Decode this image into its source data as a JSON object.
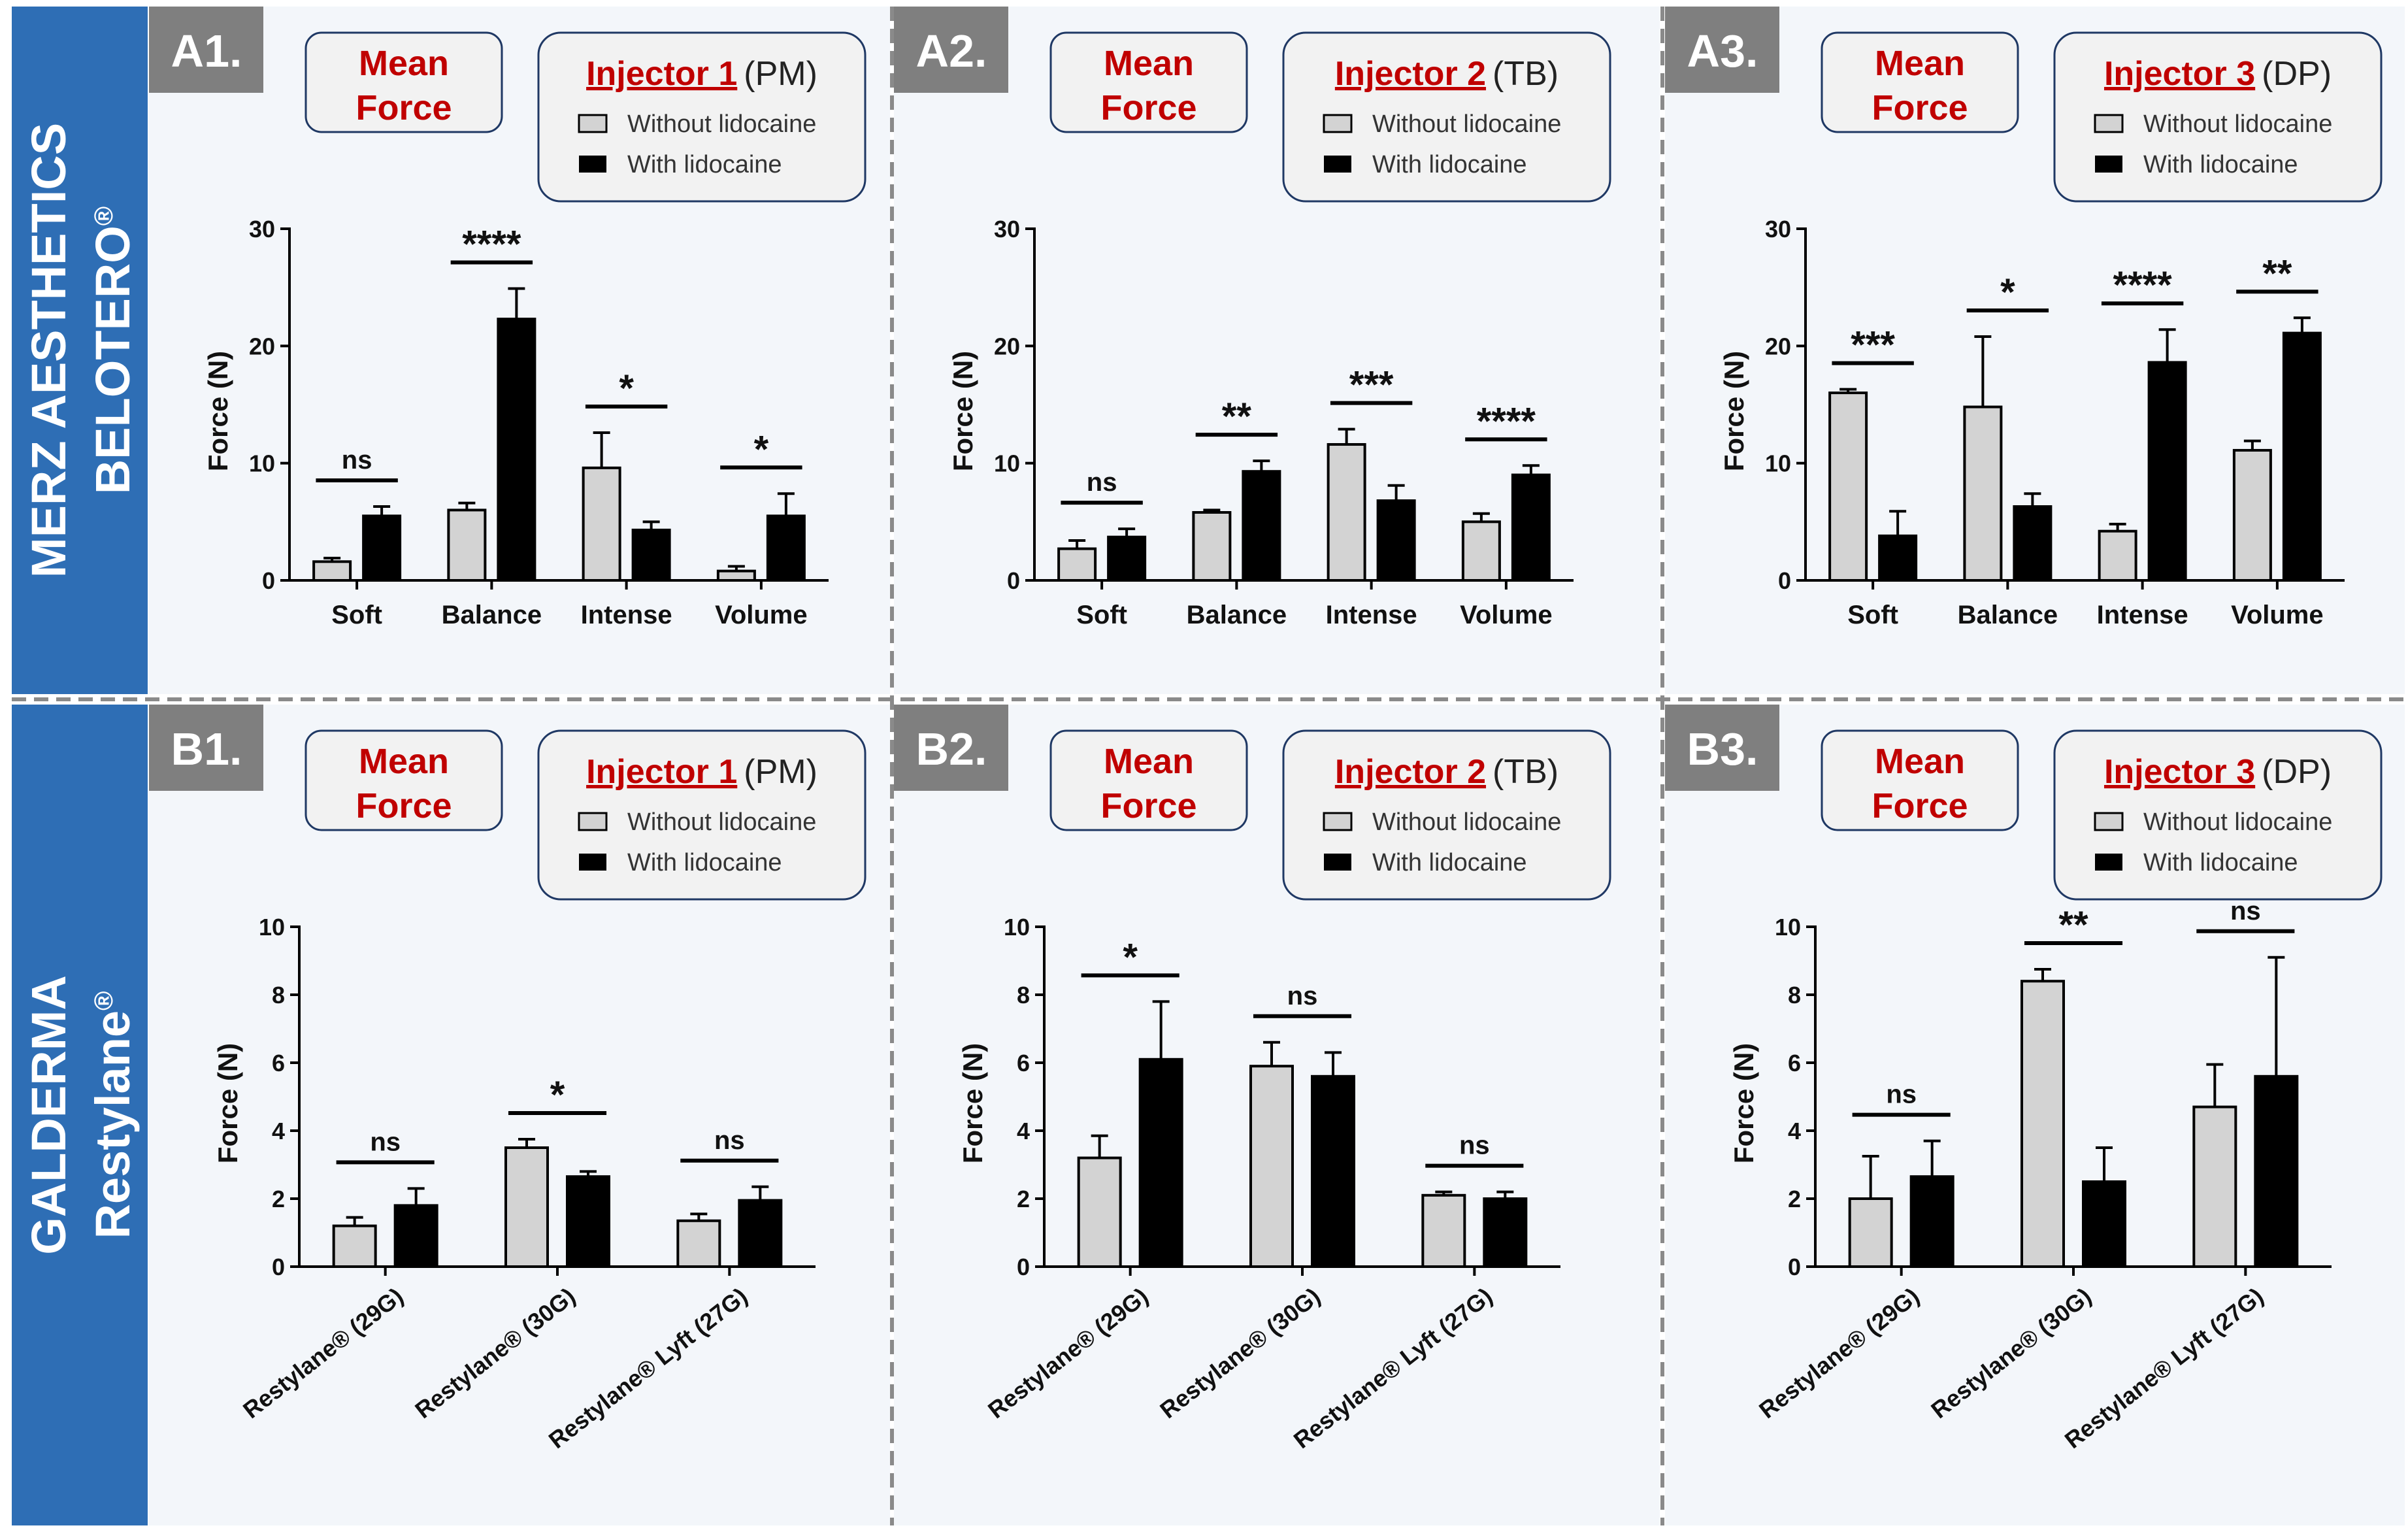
{
  "colors": {
    "sidebar": "#2e6eb5",
    "panel_bg": "#f3f6fa",
    "label_bg": "#7f7f7f",
    "title_red": "#c00000",
    "bar_light": "#d3d3d3",
    "bar_dark": "#000000",
    "box_fill": "#f2f2f2",
    "box_stroke": "#1f3864"
  },
  "sidebars": [
    {
      "line1": "MERZ AESTHETICS",
      "line2": "BELOTERO",
      "mark": "®"
    },
    {
      "line1": "GALDERMA",
      "line2": "Restylane",
      "mark": "®"
    }
  ],
  "legend": {
    "without": "Without lidocaine",
    "with": "With lidocaine"
  },
  "mean_force": {
    "line1": "Mean",
    "line2": "Force"
  },
  "chart_data": [
    {
      "panel": "A1.",
      "injector": "Injector 1",
      "injector_code": "(PM)",
      "type": "bar",
      "ylabel": "Force (N)",
      "ylim": [
        0,
        30
      ],
      "yticks": [
        0,
        10,
        20,
        30
      ],
      "categories": [
        "Soft",
        "Balance",
        "Intense",
        "Volume"
      ],
      "series": [
        {
          "name": "Without lidocaine",
          "values": [
            1.6,
            6.0,
            9.6,
            0.8
          ],
          "errors": [
            0.3,
            0.6,
            3.0,
            0.4
          ]
        },
        {
          "name": "With lidocaine",
          "values": [
            5.5,
            22.3,
            4.3,
            5.5
          ],
          "errors": [
            0.8,
            2.6,
            0.7,
            1.9
          ]
        }
      ],
      "significance": [
        "ns",
        "****",
        "*",
        "*"
      ]
    },
    {
      "panel": "A2.",
      "injector": "Injector 2",
      "injector_code": "(TB)",
      "type": "bar",
      "ylabel": "Force (N)",
      "ylim": [
        0,
        30
      ],
      "yticks": [
        0,
        10,
        20,
        30
      ],
      "categories": [
        "Soft",
        "Balance",
        "Intense",
        "Volume"
      ],
      "series": [
        {
          "name": "Without lidocaine",
          "values": [
            2.7,
            5.8,
            11.6,
            5.0
          ],
          "errors": [
            0.7,
            0.2,
            1.3,
            0.7
          ]
        },
        {
          "name": "With lidocaine",
          "values": [
            3.7,
            9.3,
            6.8,
            9.0
          ],
          "errors": [
            0.7,
            0.9,
            1.3,
            0.8
          ]
        }
      ],
      "significance": [
        "ns",
        "**",
        "***",
        "****"
      ]
    },
    {
      "panel": "A3.",
      "injector": "Injector 3",
      "injector_code": "(DP)",
      "type": "bar",
      "ylabel": "Force (N)",
      "ylim": [
        0,
        30
      ],
      "yticks": [
        0,
        10,
        20,
        30
      ],
      "categories": [
        "Soft",
        "Balance",
        "Intense",
        "Volume"
      ],
      "series": [
        {
          "name": "Without lidocaine",
          "values": [
            16.0,
            14.8,
            4.2,
            11.1
          ],
          "errors": [
            0.3,
            6.0,
            0.6,
            0.8
          ]
        },
        {
          "name": "With lidocaine",
          "values": [
            3.8,
            6.3,
            18.6,
            21.1
          ],
          "errors": [
            2.1,
            1.1,
            2.8,
            1.3
          ]
        }
      ],
      "significance": [
        "***",
        "*",
        "****",
        "**"
      ]
    },
    {
      "panel": "B1.",
      "injector": "Injector 1",
      "injector_code": "(PM)",
      "type": "bar",
      "ylabel": "Force (N)",
      "ylim": [
        0,
        10
      ],
      "yticks": [
        0,
        2,
        4,
        6,
        8,
        10
      ],
      "categories": [
        "Restylane® (29G)",
        "Restylane® (30G)",
        "Restylane® Lyft (27G)"
      ],
      "series": [
        {
          "name": "Without lidocaine",
          "values": [
            1.2,
            3.5,
            1.35
          ],
          "errors": [
            0.25,
            0.25,
            0.2
          ]
        },
        {
          "name": "With lidocaine",
          "values": [
            1.8,
            2.65,
            1.95
          ],
          "errors": [
            0.5,
            0.15,
            0.4
          ]
        }
      ],
      "significance": [
        "ns",
        "*",
        "ns"
      ]
    },
    {
      "panel": "B2.",
      "injector": "Injector 2",
      "injector_code": "(TB)",
      "type": "bar",
      "ylabel": "Force (N)",
      "ylim": [
        0,
        10
      ],
      "yticks": [
        0,
        2,
        4,
        6,
        8,
        10
      ],
      "categories": [
        "Restylane® (29G)",
        "Restylane® (30G)",
        "Restylane® Lyft (27G)"
      ],
      "series": [
        {
          "name": "Without lidocaine",
          "values": [
            3.2,
            5.9,
            2.1
          ],
          "errors": [
            0.65,
            0.7,
            0.1
          ]
        },
        {
          "name": "With lidocaine",
          "values": [
            6.1,
            5.6,
            2.0
          ],
          "errors": [
            1.7,
            0.7,
            0.2
          ]
        }
      ],
      "significance": [
        "*",
        "ns",
        "ns"
      ]
    },
    {
      "panel": "B3.",
      "injector": "Injector 3",
      "injector_code": "(DP)",
      "type": "bar",
      "ylabel": "Force (N)",
      "ylim": [
        0,
        10
      ],
      "yticks": [
        0,
        2,
        4,
        6,
        8,
        10
      ],
      "categories": [
        "Restylane® (29G)",
        "Restylane® (30G)",
        "Restylane® Lyft (27G)"
      ],
      "series": [
        {
          "name": "Without lidocaine",
          "values": [
            2.0,
            8.4,
            4.7
          ],
          "errors": [
            1.25,
            0.35,
            1.25
          ]
        },
        {
          "name": "With lidocaine",
          "values": [
            2.65,
            2.5,
            5.6
          ],
          "errors": [
            1.05,
            1.0,
            3.5
          ]
        }
      ],
      "significance": [
        "ns",
        "**",
        "ns"
      ]
    }
  ]
}
